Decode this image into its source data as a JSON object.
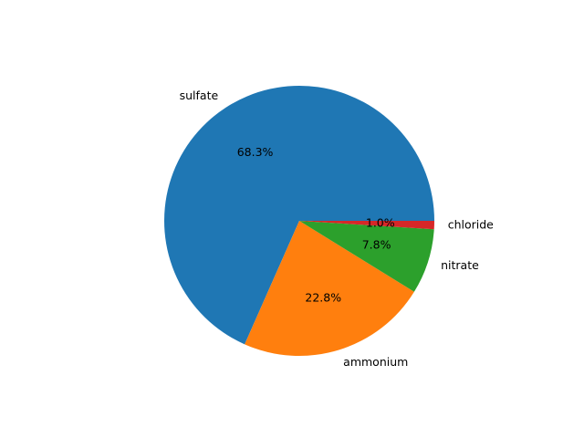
{
  "chart_data": {
    "type": "pie",
    "categories": [
      "sulfate",
      "ammonium",
      "nitrate",
      "chloride"
    ],
    "values": [
      68.3,
      22.8,
      7.8,
      1.0
    ],
    "percent_labels": [
      "68.3%",
      "22.8%",
      "7.8%",
      "1.0%"
    ],
    "colors": [
      "#1f77b4",
      "#ff7f0e",
      "#2ca02c",
      "#d62728"
    ],
    "start_angle_deg": 0,
    "direction": "counterclockwise",
    "title": "",
    "legend": "none"
  }
}
